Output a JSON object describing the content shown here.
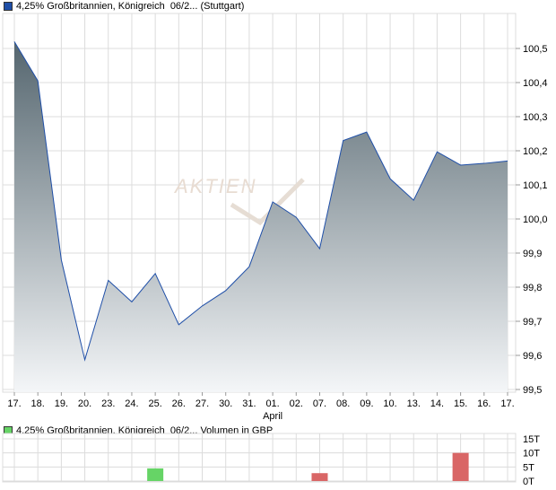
{
  "colors": {
    "price_swatch": "#1f4fa8",
    "line": "#1f4fa8",
    "fill_top": "#55666f",
    "fill_bottom": "#f4f6f8",
    "vol_swatch": "#66d466",
    "up": "#66d466",
    "down": "#d96666",
    "grid": "#dcdcdc"
  },
  "chart_data": [
    {
      "type": "area",
      "title": "4,25% Großbritannien, Königreich  06/2... (Stuttgart)",
      "categories": [
        "17.",
        "18.",
        "19.",
        "20.",
        "23.",
        "24.",
        "25.",
        "26.",
        "27.",
        "30.",
        "31.",
        "01.",
        "02.",
        "07.",
        "08.",
        "09.",
        "10.",
        "13.",
        "14.",
        "15.",
        "16.",
        "17."
      ],
      "month_label": "April",
      "month_label_index": 11,
      "values": [
        100.52,
        100.405,
        99.88,
        99.587,
        99.82,
        99.757,
        99.84,
        99.69,
        99.745,
        99.79,
        99.86,
        100.05,
        100.005,
        99.913,
        100.23,
        100.255,
        100.118,
        100.055,
        100.197,
        100.158,
        100.163,
        100.17
      ],
      "ylim": [
        99.5,
        100.6
      ],
      "yticks": [
        "99,5",
        "99,6",
        "99,7",
        "99,8",
        "99,9",
        "100,0",
        "100,1",
        "100,2",
        "100,3",
        "100,4",
        "100,5"
      ],
      "grid": true,
      "watermark": "AKTIEN CHECK"
    },
    {
      "type": "bar",
      "title": "4,25% Großbritannien, Königreich  06/2... Volumen in GBP",
      "bars": [
        {
          "index": 6,
          "value": 4.5,
          "dir": "up"
        },
        {
          "index": 13,
          "value": 2.8,
          "dir": "down"
        },
        {
          "index": 19,
          "value": 10,
          "dir": "down"
        }
      ],
      "ylim": [
        0,
        15
      ],
      "yticks": [
        "0T",
        "5T",
        "10T",
        "15T"
      ],
      "grid": true
    }
  ]
}
